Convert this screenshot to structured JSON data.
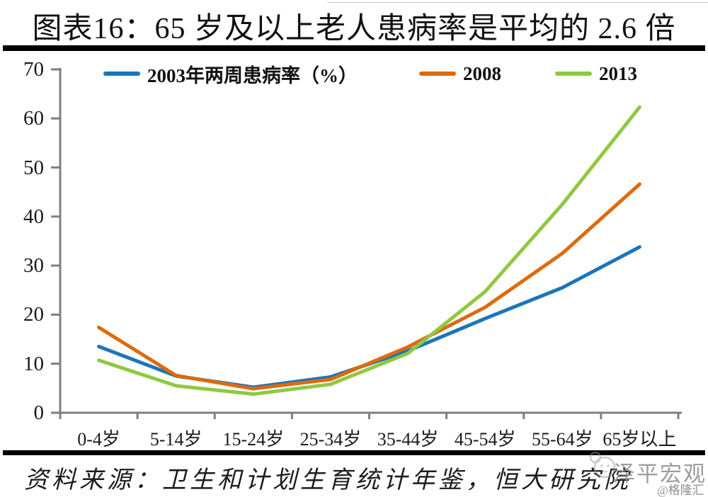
{
  "title": "图表16：65 岁及以上老人患病率是平均的 2.6 倍",
  "chart_data": {
    "type": "line",
    "title": "图表16：65 岁及以上老人患病率是平均的 2.6 倍",
    "categories": [
      "0-4岁",
      "5-14岁",
      "15-24岁",
      "25-34岁",
      "35-44岁",
      "45-54岁",
      "55-64岁",
      "65岁以上"
    ],
    "series": [
      {
        "name": "2003年两周患病率（%）",
        "color": "#1B75BB",
        "values": [
          13.5,
          7.5,
          5.2,
          7.3,
          12.6,
          19.2,
          25.5,
          33.8
        ]
      },
      {
        "name": "2008",
        "color": "#DE6A0C",
        "values": [
          17.4,
          7.6,
          4.9,
          6.8,
          13.4,
          21.5,
          32.5,
          46.6
        ]
      },
      {
        "name": "2013",
        "color": "#8FC841",
        "values": [
          10.7,
          5.5,
          3.8,
          5.8,
          12.1,
          24.7,
          42.5,
          62.3
        ]
      }
    ],
    "xlabel": "",
    "ylabel": "",
    "ylim": [
      0,
      70
    ],
    "yticks": [
      0,
      10,
      20,
      30,
      40,
      50,
      60,
      70
    ],
    "grid": false,
    "legend_position": "top-inside",
    "axis_color": "#7f7f7f"
  },
  "source_note": "资料来源：卫生和计划生育统计年鉴，恒大研究院",
  "watermark": {
    "logo": "face-logo",
    "text": "泽平宏观",
    "handle": "@格隆汇"
  }
}
